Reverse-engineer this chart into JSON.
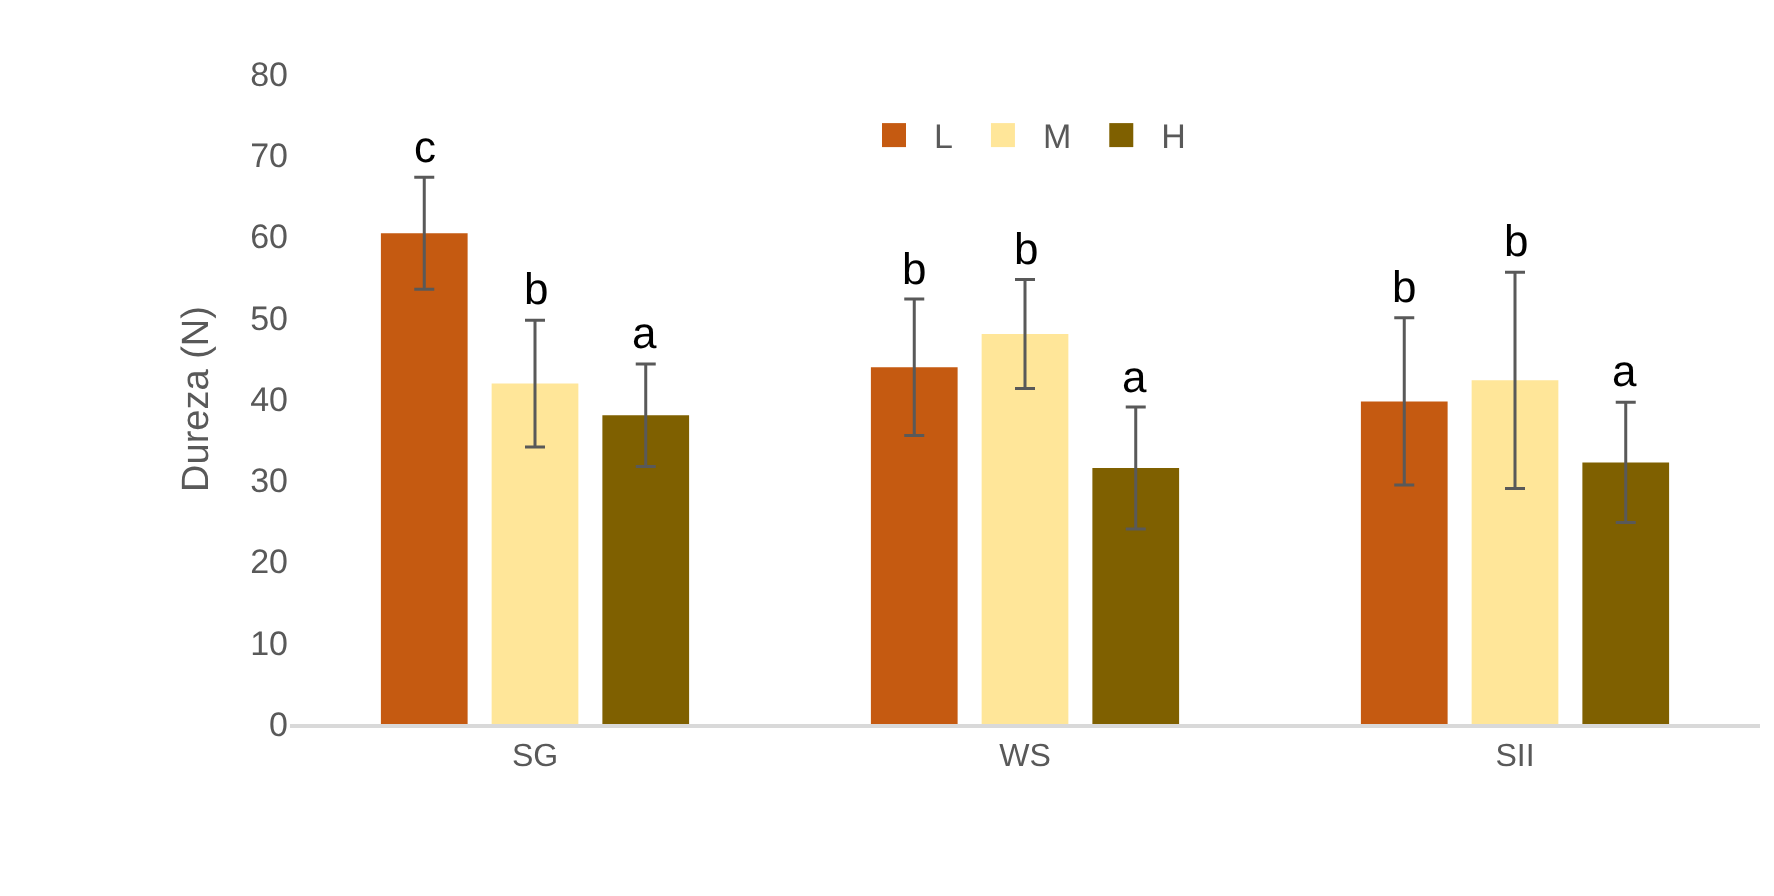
{
  "chart_data": {
    "type": "bar",
    "ylabel": "Dureza (N)",
    "categories": [
      "SG",
      "WS",
      "SII"
    ],
    "series": [
      {
        "name": "L",
        "color": "#c55a11",
        "values": [
          60.4,
          43.9,
          39.7
        ],
        "errors": [
          6.9,
          8.4,
          10.3
        ],
        "value_labels": [
          "c",
          "b",
          "b"
        ]
      },
      {
        "name": "M",
        "color": "#ffe699",
        "values": [
          41.9,
          48.0,
          42.3
        ],
        "errors": [
          7.8,
          6.7,
          13.3
        ],
        "value_labels": [
          "b",
          "b",
          "b"
        ]
      },
      {
        "name": "H",
        "color": "#7f6000",
        "values": [
          38.0,
          31.5,
          32.2
        ],
        "errors": [
          6.3,
          7.5,
          7.4
        ],
        "value_labels": [
          "a",
          "a",
          "a"
        ]
      }
    ],
    "ylim": [
      0,
      80
    ],
    "yticks": [
      0,
      10,
      20,
      30,
      40,
      50,
      60,
      70,
      80
    ],
    "legend": "top"
  }
}
